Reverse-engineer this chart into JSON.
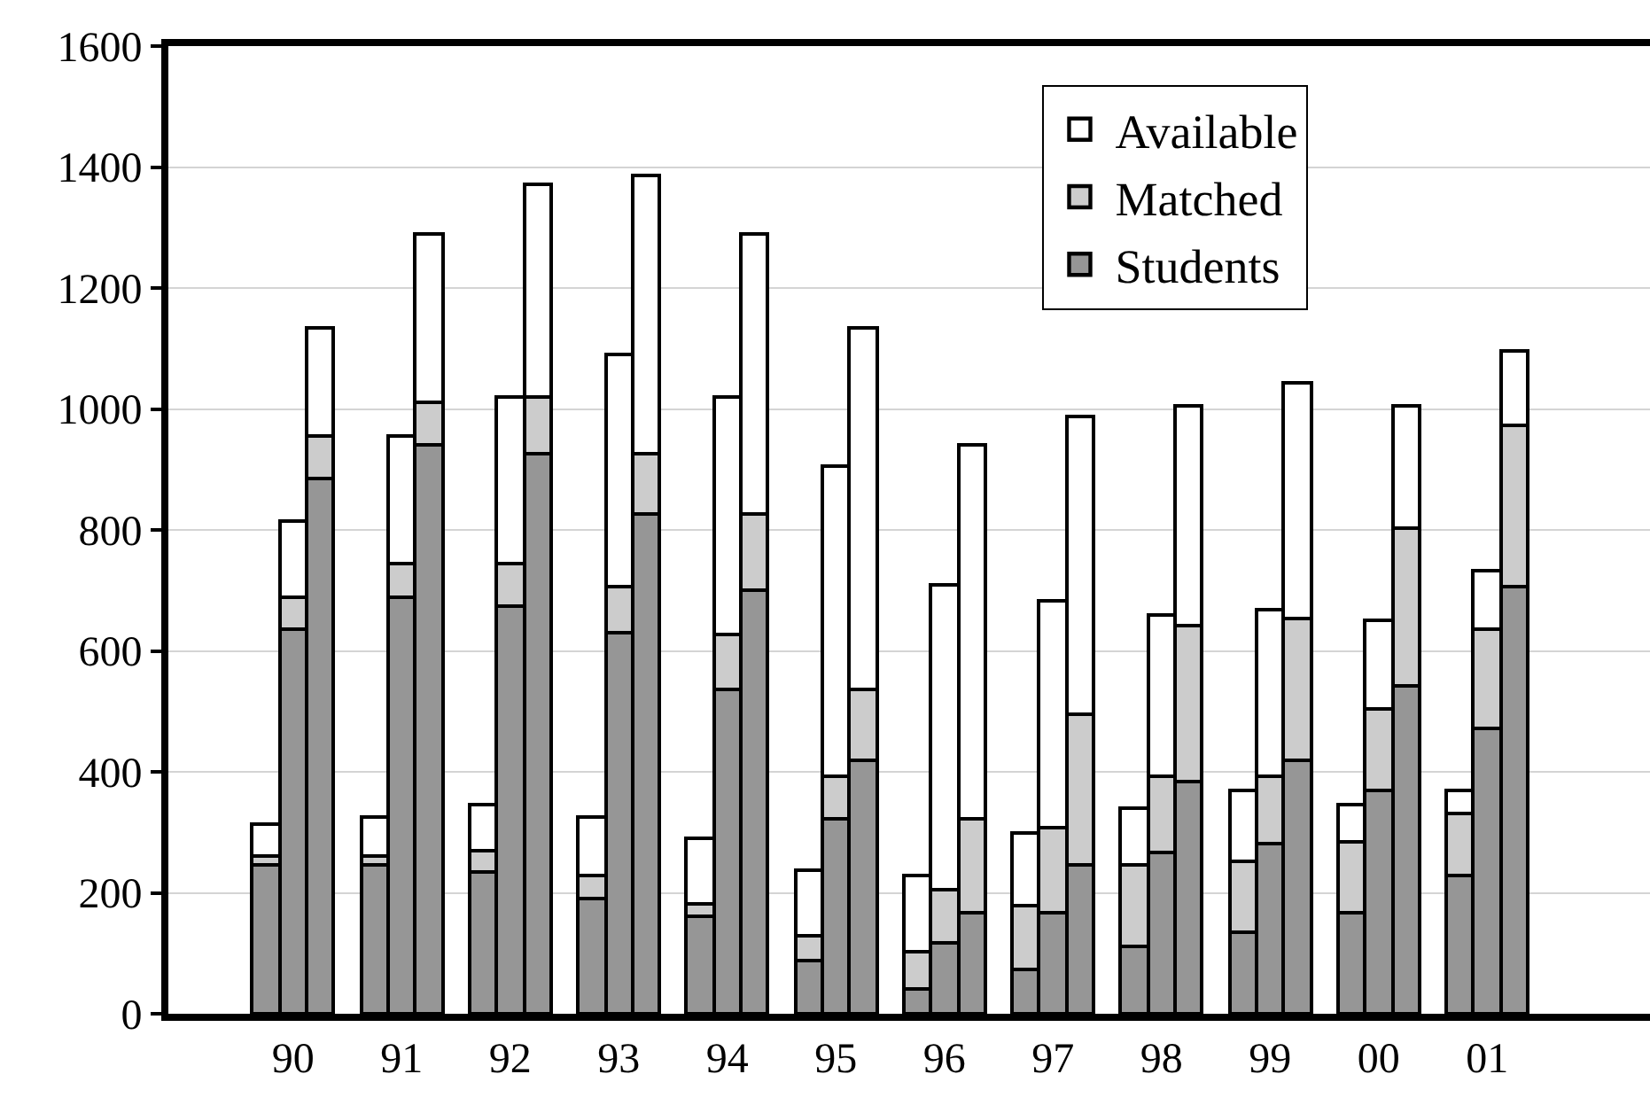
{
  "chart_data": {
    "type": "bar",
    "stacked": true,
    "categories": [
      null,
      "90",
      null,
      null,
      "91",
      null,
      null,
      "92",
      null,
      null,
      "93",
      null,
      null,
      "94",
      null,
      null,
      "95",
      null,
      null,
      "96",
      null,
      null,
      "97",
      null,
      null,
      "98",
      null,
      null,
      "99",
      null,
      null,
      "00",
      null,
      null,
      "01",
      null
    ],
    "series": [
      {
        "name": "Students",
        "color": "#969696",
        "values": [
          245,
          635,
          885,
          245,
          690,
          940,
          235,
          675,
          925,
          190,
          630,
          825,
          160,
          535,
          700,
          88,
          322,
          418,
          42,
          118,
          168,
          72,
          168,
          245,
          112,
          268,
          385,
          135,
          282,
          418,
          168,
          370,
          543,
          230,
          472,
          707
        ]
      },
      {
        "name": "Matched",
        "color": "#cccccc",
        "values": [
          17,
          55,
          70,
          17,
          55,
          70,
          35,
          70,
          95,
          40,
          75,
          100,
          22,
          93,
          125,
          40,
          71,
          117,
          61,
          87,
          154,
          108,
          140,
          250,
          133,
          125,
          258,
          118,
          111,
          235,
          115,
          133,
          260,
          100,
          163,
          266
        ]
      },
      {
        "name": "Available",
        "color": "#ffffff",
        "values": [
          53,
          125,
          180,
          63,
          210,
          280,
          75,
          275,
          350,
          95,
          385,
          460,
          108,
          392,
          465,
          110,
          512,
          600,
          125,
          503,
          618,
          120,
          375,
          493,
          95,
          267,
          362,
          117,
          275,
          390,
          64,
          149,
          202,
          40,
          97,
          124
        ]
      }
    ],
    "ylim": [
      0,
      1600
    ],
    "yticks": [
      0,
      200,
      400,
      600,
      800,
      1000,
      1200,
      1400,
      1600
    ],
    "grid": "y",
    "legend": "top right"
  }
}
